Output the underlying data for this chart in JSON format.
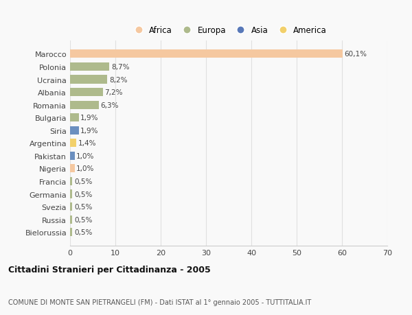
{
  "countries": [
    "Marocco",
    "Polonia",
    "Ucraina",
    "Albania",
    "Romania",
    "Bulgaria",
    "Siria",
    "Argentina",
    "Pakistan",
    "Nigeria",
    "Francia",
    "Germania",
    "Svezia",
    "Russia",
    "Bielorussia"
  ],
  "values": [
    60.1,
    8.7,
    8.2,
    7.2,
    6.3,
    1.9,
    1.9,
    1.4,
    1.0,
    1.0,
    0.5,
    0.5,
    0.5,
    0.5,
    0.5
  ],
  "labels": [
    "60,1%",
    "8,7%",
    "8,2%",
    "7,2%",
    "6,3%",
    "1,9%",
    "1,9%",
    "1,4%",
    "1,0%",
    "1,0%",
    "0,5%",
    "0,5%",
    "0,5%",
    "0,5%",
    "0,5%"
  ],
  "continents": [
    "Africa",
    "Europa",
    "Europa",
    "Europa",
    "Europa",
    "Europa",
    "Asia",
    "America",
    "Asia",
    "Africa",
    "Europa",
    "Europa",
    "Europa",
    "Europa",
    "Europa"
  ],
  "colors": {
    "Africa": "#F5C8A0",
    "Europa": "#AEBA8C",
    "Asia": "#6B8FBF",
    "America": "#F2D06B"
  },
  "legend_colors": {
    "Africa": "#F5C8A0",
    "Europa": "#AEBA8C",
    "Asia": "#5878B8",
    "America": "#F2D06B"
  },
  "xlim": [
    0,
    70
  ],
  "xticks": [
    0,
    10,
    20,
    30,
    40,
    50,
    60,
    70
  ],
  "title": "Cittadini Stranieri per Cittadinanza - 2005",
  "subtitle": "COMUNE DI MONTE SAN PIETRANGELI (FM) - Dati ISTAT al 1° gennaio 2005 - TUTTITALIA.IT",
  "bg_color": "#f9f9f9",
  "grid_color": "#e0e0e0"
}
